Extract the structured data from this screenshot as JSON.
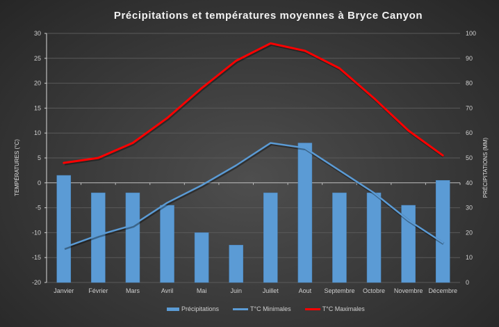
{
  "chart_data": {
    "type": "bar+line",
    "title": "Précipitations et températures moyennes à Bryce Canyon",
    "categories": [
      "Janvier",
      "Février",
      "Mars",
      "Avril",
      "Mai",
      "Juin",
      "Juillet",
      "Aout",
      "Septembre",
      "Octobre",
      "Novembre",
      "Décembre"
    ],
    "series": [
      {
        "name": "Précipitations",
        "type": "bar",
        "axis": "right",
        "color": "#5b9bd5",
        "values": [
          43,
          36,
          36,
          31,
          20,
          15,
          36,
          56,
          36,
          36,
          31,
          41
        ]
      },
      {
        "name": "T°C Minimales",
        "type": "line",
        "axis": "left",
        "color": "#5b9bd5",
        "values": [
          -13,
          -10.5,
          -8.5,
          -4,
          -0.5,
          3.5,
          8,
          7,
          2.5,
          -2,
          -7.5,
          -12
        ]
      },
      {
        "name": "T°C Maximales",
        "type": "line",
        "axis": "left",
        "color": "#ff0000",
        "values": [
          4,
          5,
          8,
          13,
          19,
          24.5,
          28,
          26.5,
          23,
          17,
          10.5,
          5.5
        ]
      }
    ],
    "ylabel": "TEMPÉRATURES (°C)",
    "ylim": [
      -20,
      30
    ],
    "yticks": [
      30,
      25,
      20,
      15,
      10,
      5,
      0,
      -5,
      -10,
      -15,
      -20
    ],
    "y2label": "PRÉCIPITATIONS (MM)",
    "y2lim": [
      0,
      100
    ],
    "y2ticks": [
      100,
      90,
      80,
      70,
      60,
      50,
      40,
      30,
      20,
      10,
      0
    ],
    "xlabel": "",
    "grid": true,
    "legend_position": "bottom"
  },
  "legend": {
    "precip": "Précipitations",
    "tmin": "T°C Minimales",
    "tmax": "T°C Maximales"
  }
}
